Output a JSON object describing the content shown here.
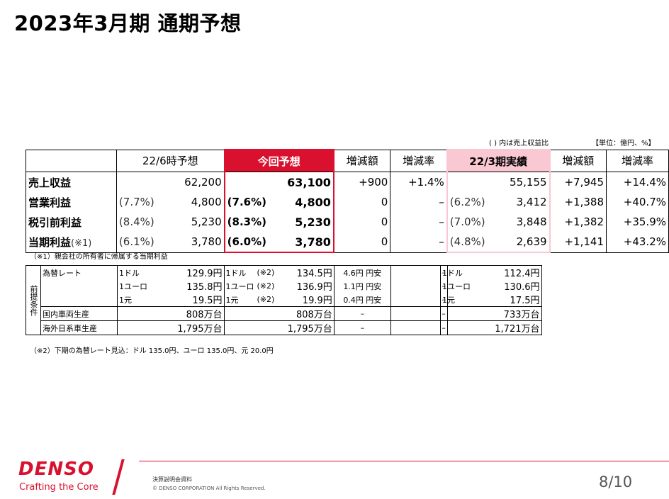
{
  "title": "2023年3月期 通期予想",
  "notes": {
    "ratio_note": "( ) 内は売上収益比",
    "unit_note": "【単位：億円、%】",
    "note1": "（※1）親会社の所有者に帰属する当期利益",
    "note2": "（※2）下期の為替レート見込：ドル 135.0円、ユーロ 135.0円、元 20.0円"
  },
  "main_table": {
    "headers": {
      "prev_forecast": "22/6時予想",
      "current_forecast": "今回予想",
      "change_amount": "増減額",
      "change_rate": "増減率",
      "actual": "22/3期実績",
      "change_amount2": "増減額",
      "change_rate2": "増減率"
    },
    "rows": [
      {
        "label": "売上収益",
        "label_note": "",
        "prev_pct": "",
        "prev": "62,200",
        "cur_pct": "",
        "cur": "63,100",
        "diff": "+900",
        "rate": "+1.4%",
        "act_pct": "",
        "act": "55,155",
        "diff2": "+7,945",
        "rate2": "+14.4%"
      },
      {
        "label": "営業利益",
        "label_note": "",
        "prev_pct": "(7.7%)",
        "prev": "4,800",
        "cur_pct": "(7.6%)",
        "cur": "4,800",
        "diff": "0",
        "rate": "–",
        "act_pct": "(6.2%)",
        "act": "3,412",
        "diff2": "+1,388",
        "rate2": "+40.7%"
      },
      {
        "label": "税引前利益",
        "label_note": "",
        "prev_pct": "(8.4%)",
        "prev": "5,230",
        "cur_pct": "(8.3%)",
        "cur": "5,230",
        "diff": "0",
        "rate": "–",
        "act_pct": "(7.0%)",
        "act": "3,848",
        "diff2": "+1,382",
        "rate2": "+35.9%"
      },
      {
        "label": "当期利益",
        "label_note": "(※1)",
        "prev_pct": "(6.1%)",
        "prev": "3,780",
        "cur_pct": "(6.0%)",
        "cur": "3,780",
        "diff": "0",
        "rate": "–",
        "act_pct": "(4.8%)",
        "act": "2,639",
        "diff2": "+1,141",
        "rate2": "+43.2%"
      }
    ]
  },
  "assumptions": {
    "side_label": "前提条件",
    "rows": [
      {
        "name": "為替レート",
        "p_unit": "1ドル",
        "p_val": "129.9円",
        "c_unit": "1ドル",
        "c_note": "(※2)",
        "c_val": "134.5円",
        "diff": "4.6円 円安",
        "rate": "–",
        "a_unit": "1ドル",
        "a_val": "112.4円"
      },
      {
        "name": "",
        "p_unit": "1ユーロ",
        "p_val": "135.8円",
        "c_unit": "1ユーロ",
        "c_note": "(※2)",
        "c_val": "136.9円",
        "diff": "1.1円 円安",
        "rate": "–",
        "a_unit": "1ユーロ",
        "a_val": "130.6円"
      },
      {
        "name": "",
        "p_unit": "1元",
        "p_val": "19.5円",
        "c_unit": "1元",
        "c_note": "(※2)",
        "c_val": "19.9円",
        "diff": "0.4円 円安",
        "rate": "–",
        "a_unit": "1元",
        "a_val": "17.5円"
      },
      {
        "name": "国内車両生産",
        "p_unit": "",
        "p_val": "808万台",
        "c_unit": "",
        "c_note": "",
        "c_val": "808万台",
        "diff": "–",
        "rate": "–",
        "a_unit": "",
        "a_val": "733万台"
      },
      {
        "name": "海外日系車生産",
        "p_unit": "",
        "p_val": "1,795万台",
        "c_unit": "",
        "c_note": "",
        "c_val": "1,795万台",
        "diff": "–",
        "rate": "–",
        "a_unit": "",
        "a_val": "1,721万台"
      }
    ]
  },
  "footer": {
    "logo": "DENSO",
    "tagline": "Crafting the Core",
    "doc": "決算説明会資料",
    "copyright": "© DENSO CORPORATION All Rights Reserved.",
    "page": "8/10"
  },
  "colors": {
    "accent": "#d9102e",
    "pink": "#f9c8d2"
  }
}
